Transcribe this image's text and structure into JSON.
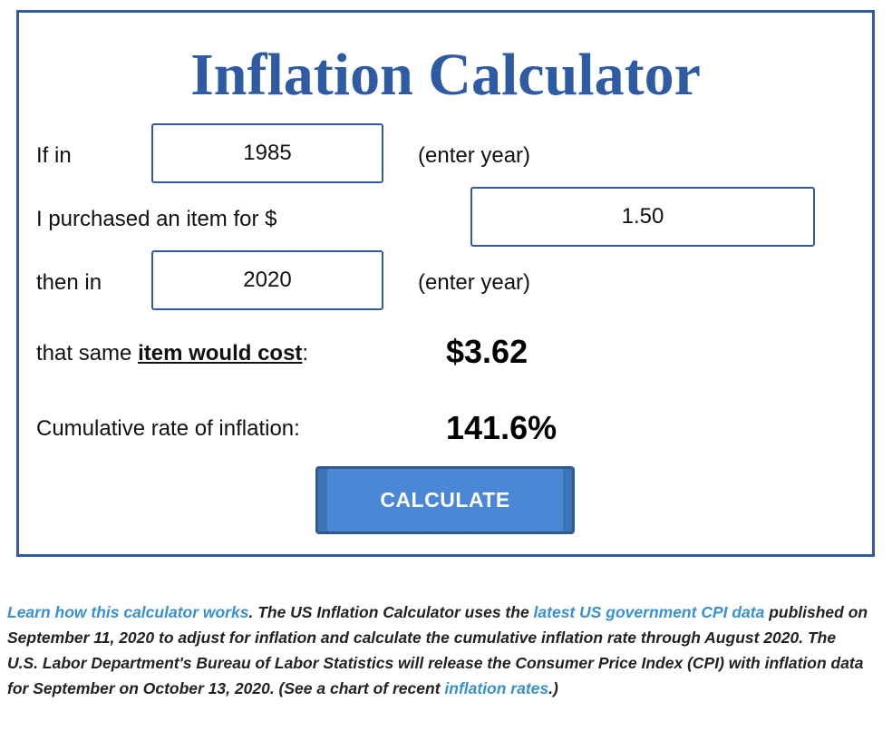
{
  "calculator": {
    "title": "Inflation Calculator",
    "row1": {
      "label": "If in",
      "value": "1985",
      "hint": "(enter year)"
    },
    "row2": {
      "label": "I purchased an item for $",
      "value": "1.50"
    },
    "row3": {
      "label": "then in",
      "value": "2020",
      "hint": "(enter year)"
    },
    "cost": {
      "label_prefix": "that same ",
      "label_emphasis": "item would cost",
      "label_suffix": ":",
      "value": "$3.62"
    },
    "cumulative": {
      "label": "Cumulative rate of inflation:",
      "value": "141.6%"
    },
    "button_label": "CALCULATE"
  },
  "footnote": {
    "link_learn": "Learn how this calculator works",
    "text1": ". The US Inflation Calculator uses the ",
    "link_cpi": "latest US government CPI data",
    "text2": " published on September 11, 2020 to adjust for inflation and calculate the cumulative inflation rate through August 2020. The U.S. Labor Department's Bureau of Labor Statistics will release the Consumer Price Index (CPI) with inflation data for September on October 13, 2020. (See a chart of recent ",
    "link_rates": "inflation rates",
    "text3": ".)"
  },
  "colors": {
    "title": "#2f5aa4",
    "border": "#2f5c9e",
    "button": "#4a87d4",
    "link": "#3a8fcf"
  }
}
